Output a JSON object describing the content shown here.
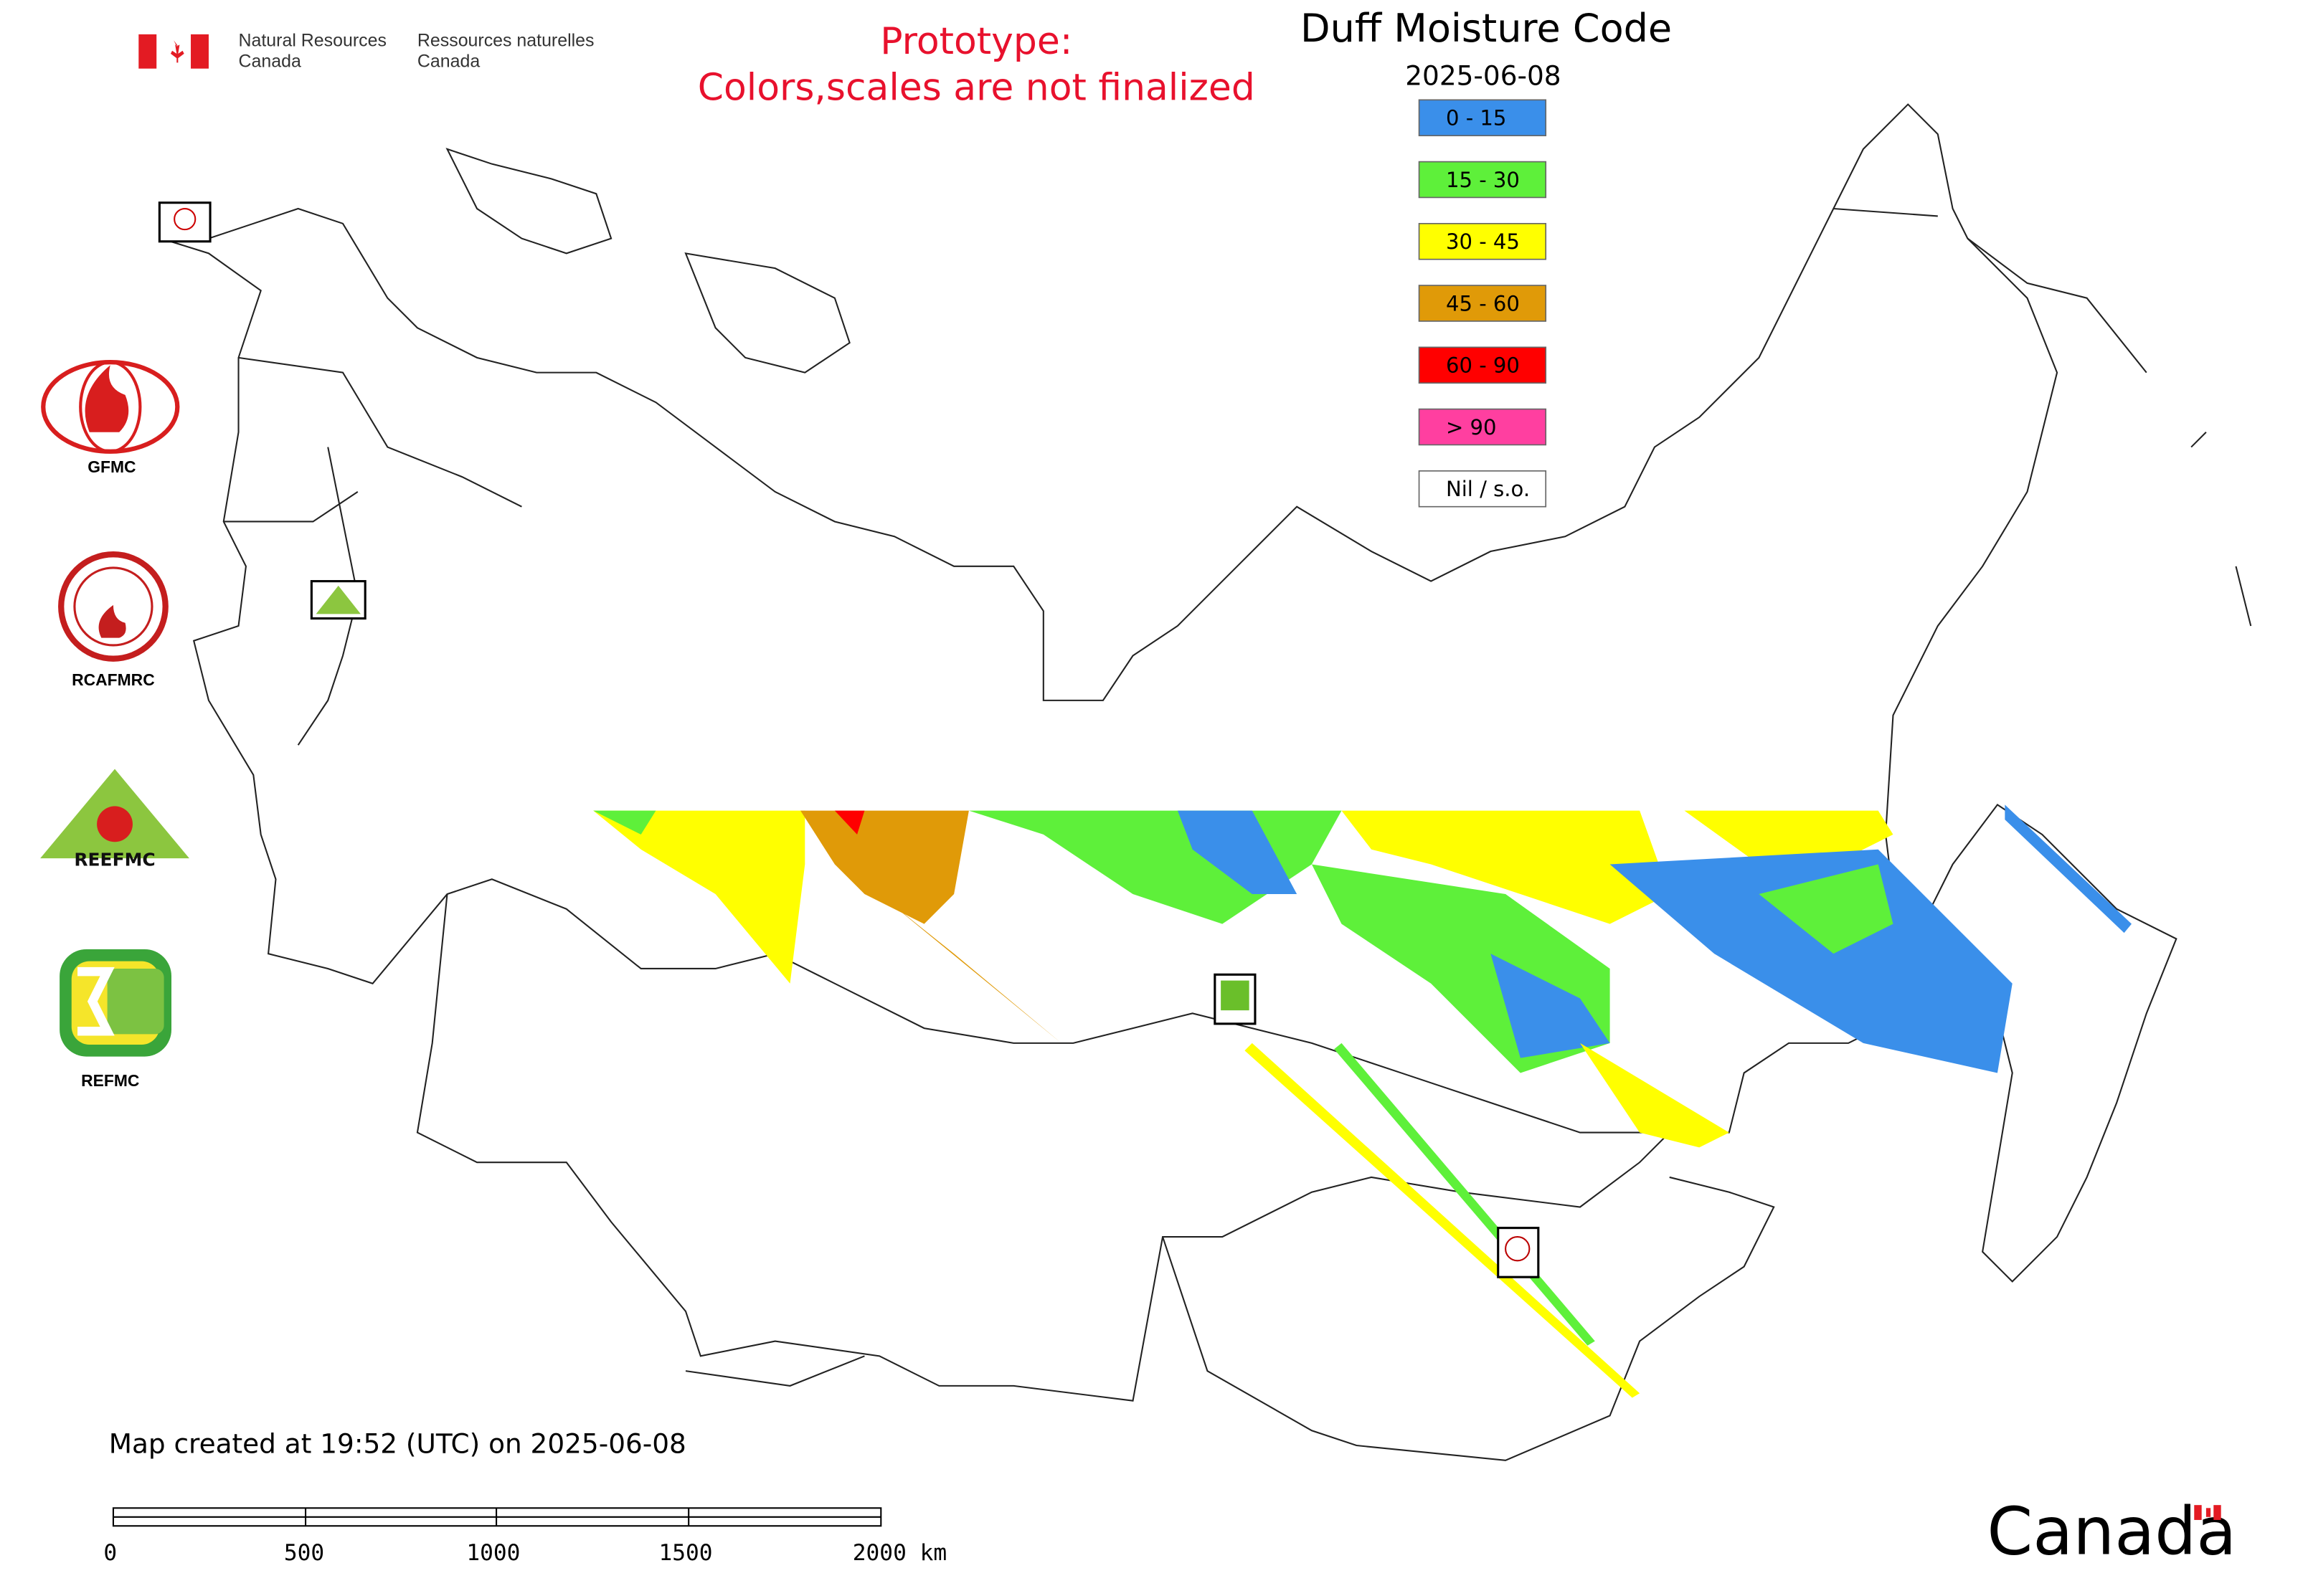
{
  "header": {
    "org_en": [
      "Natural Resources",
      "Canada"
    ],
    "org_fr": [
      "Ressources naturelles",
      "Canada"
    ],
    "notice": [
      "Prototype:",
      "Colors,scales are not finalized"
    ]
  },
  "map": {
    "title": "Duff Moisture Code",
    "date": "2025-06-08",
    "legend": [
      {
        "label": "0 - 15",
        "color": "#3a8fea"
      },
      {
        "label": "15 - 30",
        "color": "#5ef03a"
      },
      {
        "label": "30 - 45",
        "color": "#ffff00"
      },
      {
        "label": "45 - 60",
        "color": "#e09a08"
      },
      {
        "label": "60 - 90",
        "color": "#ff0000"
      },
      {
        "label": "> 90",
        "color": "#ff3fa0"
      },
      {
        "label": "Nil / s.o.",
        "color": "#ffffff"
      }
    ]
  },
  "logos": [
    "GFMC",
    "RCAFMRC",
    "REFMC"
  ],
  "footer": {
    "created": "Map created at 19:52 (UTC) on 2025-06-08",
    "scale_bar": [
      "0",
      "500",
      "1000",
      "1500",
      "2000 km"
    ],
    "wordmark": "Canada"
  }
}
